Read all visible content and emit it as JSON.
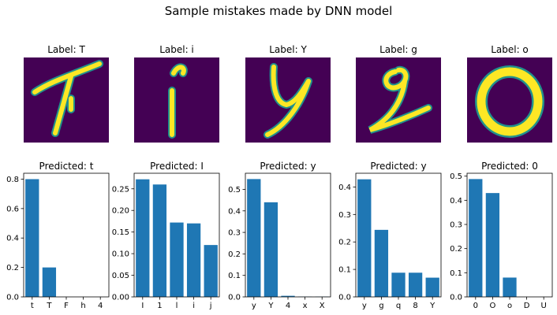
{
  "title": "Sample mistakes made by DNN model",
  "chart_data": [
    {
      "type": "image",
      "title": "Label: T"
    },
    {
      "type": "image",
      "title": "Label: i"
    },
    {
      "type": "image",
      "title": "Label: Y"
    },
    {
      "type": "image",
      "title": "Label: g"
    },
    {
      "type": "image",
      "title": "Label: o"
    },
    {
      "type": "bar",
      "title": "Predicted: t",
      "categories": [
        "t",
        "T",
        "F",
        "h",
        "4"
      ],
      "values": [
        0.8,
        0.2,
        0,
        0,
        0
      ],
      "ylim": [
        0,
        0.84
      ],
      "yticks": [
        "0.0",
        "0.2",
        "0.4",
        "0.6",
        "0.8"
      ],
      "ytick_values": [
        0,
        0.2,
        0.4,
        0.6,
        0.8
      ],
      "color": "#1f77b4"
    },
    {
      "type": "bar",
      "title": "Predicted: I",
      "categories": [
        "I",
        "1",
        "l",
        "i",
        "j"
      ],
      "values": [
        0.272,
        0.26,
        0.172,
        0.17,
        0.12
      ],
      "ylim": [
        0,
        0.286
      ],
      "yticks": [
        "0.00",
        "0.05",
        "0.10",
        "0.15",
        "0.20",
        "0.25"
      ],
      "ytick_values": [
        0,
        0.05,
        0.1,
        0.15,
        0.2,
        0.25
      ],
      "color": "#1f77b4"
    },
    {
      "type": "bar",
      "title": "Predicted: y",
      "categories": [
        "y",
        "Y",
        "4",
        "x",
        "X"
      ],
      "values": [
        0.548,
        0.44,
        0.005,
        0.001,
        0.001
      ],
      "ylim": [
        0,
        0.575
      ],
      "yticks": [
        "0.0",
        "0.1",
        "0.2",
        "0.3",
        "0.4",
        "0.5"
      ],
      "ytick_values": [
        0,
        0.1,
        0.2,
        0.3,
        0.4,
        0.5
      ],
      "color": "#1f77b4"
    },
    {
      "type": "bar",
      "title": "Predicted: y",
      "categories": [
        "y",
        "g",
        "q",
        "8",
        "Y"
      ],
      "values": [
        0.428,
        0.244,
        0.088,
        0.088,
        0.07
      ],
      "ylim": [
        0,
        0.45
      ],
      "yticks": [
        "0.0",
        "0.1",
        "0.2",
        "0.3",
        "0.4"
      ],
      "ytick_values": [
        0,
        0.1,
        0.2,
        0.3,
        0.4
      ],
      "color": "#1f77b4"
    },
    {
      "type": "bar",
      "title": "Predicted: 0",
      "categories": [
        "0",
        "O",
        "o",
        "D",
        "U"
      ],
      "values": [
        0.488,
        0.43,
        0.08,
        0,
        0
      ],
      "ylim": [
        0,
        0.512
      ],
      "yticks": [
        "0.0",
        "0.1",
        "0.2",
        "0.3",
        "0.4",
        "0.5"
      ],
      "ytick_values": [
        0,
        0.1,
        0.2,
        0.3,
        0.4,
        0.5
      ],
      "color": "#1f77b4"
    }
  ],
  "colors": {
    "bar": "#1f77b4",
    "image_background": "#440154",
    "image_foreground": "#fde725"
  }
}
